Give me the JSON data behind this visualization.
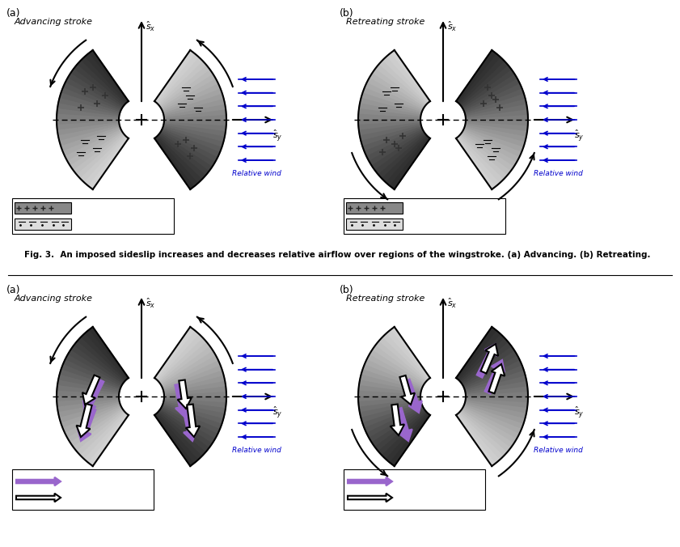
{
  "fig_width": 8.41,
  "fig_height": 6.76,
  "bg_color": "#ffffff",
  "panel_a1_title": "Advancing stroke",
  "panel_b1_title": "Retreating stroke",
  "panel_a2_title": "Advancing stroke",
  "panel_b2_title": "Retreating stroke",
  "fig_caption": "Fig. 3.  An imposed sideslip increases and decreases relative airflow over regions of the wingstroke. (a) Advancing. (b) Retreating.",
  "blue_color": "#0000cc",
  "purple_color": "#9966cc",
  "dark_gray": "#555555",
  "mid_gray": "#888888",
  "light_gray": "#cccccc",
  "arrow_color": "#000000"
}
